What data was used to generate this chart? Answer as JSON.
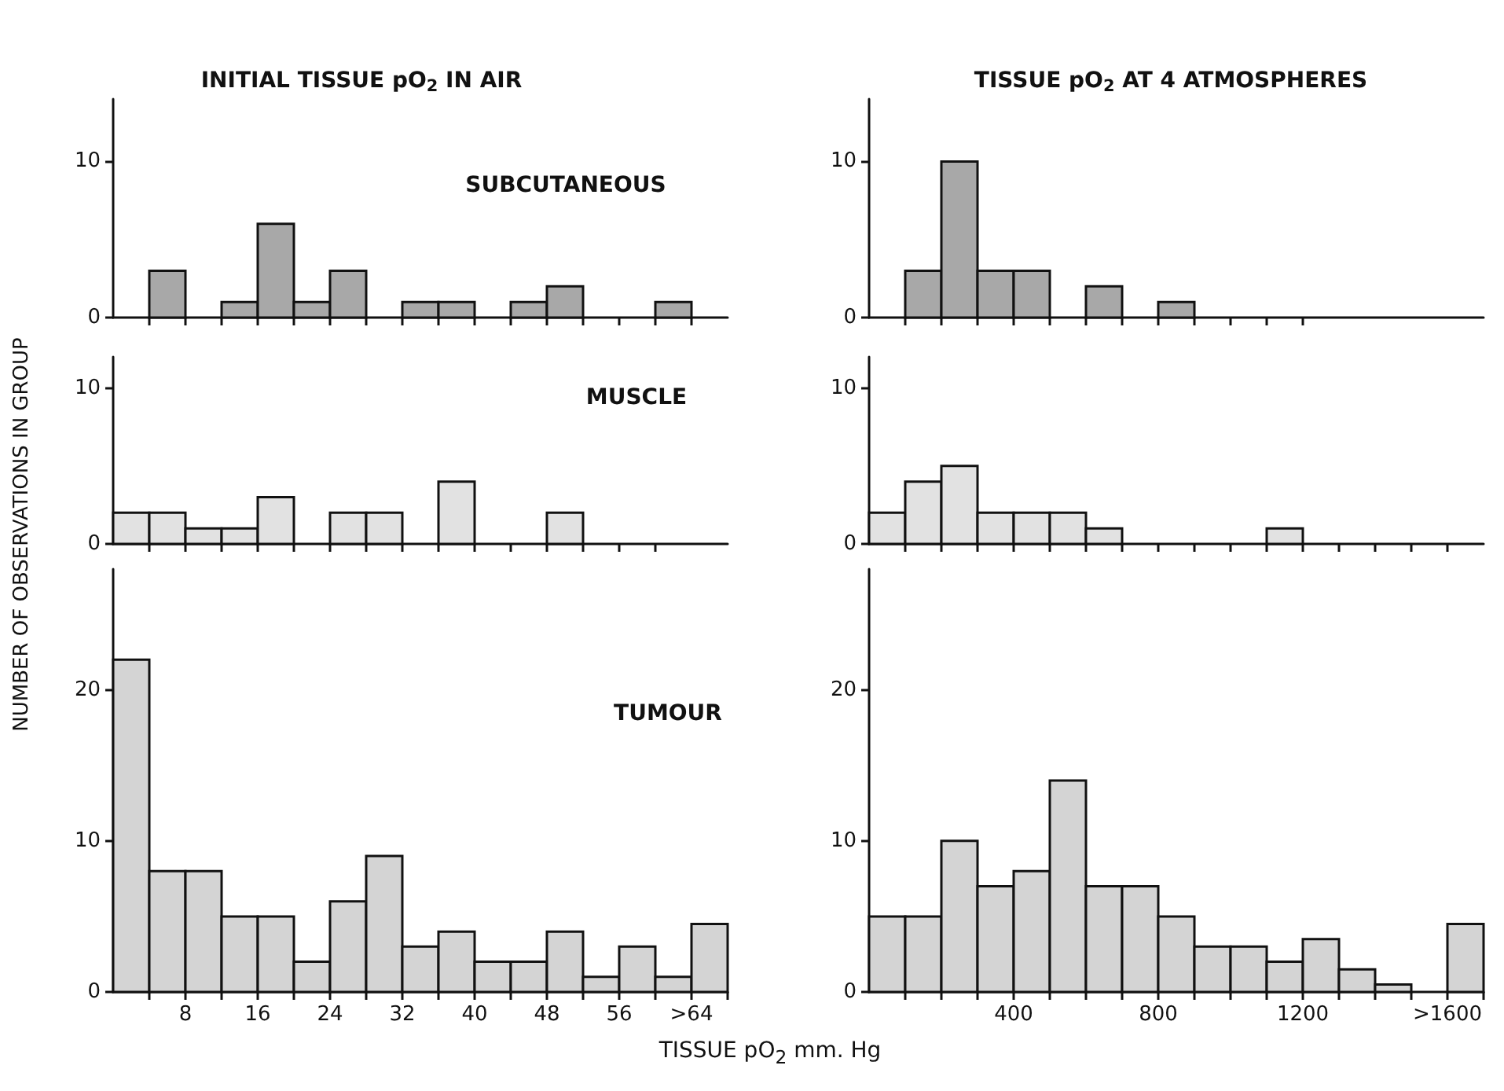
{
  "chart_data": [
    {
      "type": "histogram",
      "title": "INITIAL TISSUE pO$_{2}$ IN AIR",
      "subtitle": "SUBCUTANEOUS",
      "bins": [
        0,
        4,
        8,
        12,
        16,
        20,
        24,
        28,
        32,
        36,
        40,
        44,
        48,
        52,
        56,
        60,
        64,
        68
      ],
      "values": [
        0,
        3,
        0,
        1,
        6,
        1,
        3,
        0,
        1,
        1,
        0,
        1,
        2,
        0,
        0,
        1,
        0
      ],
      "color": "#a8a8a8",
      "xlim": [
        0,
        68
      ],
      "ylim": [
        0,
        14
      ],
      "yticks": [
        0,
        10
      ],
      "xticks": [
        {
          "value": 4,
          "label": null
        },
        {
          "value": 8,
          "label": null
        },
        {
          "value": 12,
          "label": null
        },
        {
          "value": 16,
          "label": null
        },
        {
          "value": 20,
          "label": null
        },
        {
          "value": 24,
          "label": null
        },
        {
          "value": 28,
          "label": null
        },
        {
          "value": 32,
          "label": null
        },
        {
          "value": 36,
          "label": null
        },
        {
          "value": 40,
          "label": null
        },
        {
          "value": 44,
          "label": null
        },
        {
          "value": 48,
          "label": null
        },
        {
          "value": 52,
          "label": null
        },
        {
          "value": 56,
          "label": null
        },
        {
          "value": 60,
          "label": null
        },
        {
          "value": 64,
          "label": null
        }
      ],
      "tick_labels": "y"
    },
    {
      "type": "histogram",
      "title": "TISSUE pO$_{2}$ AT 4 ATMOSPHERES",
      "bins": [
        0,
        100,
        200,
        300,
        400,
        500,
        600,
        700,
        800,
        900,
        1000,
        1100,
        1200,
        1300,
        1400,
        1500,
        1600,
        1700
      ],
      "values": [
        0,
        3,
        10,
        3,
        3,
        0,
        2,
        0,
        1,
        0,
        0,
        0,
        0,
        0,
        0,
        0,
        0
      ],
      "color": "#a8a8a8",
      "xlim": [
        0,
        1700
      ],
      "ylim": [
        0,
        14
      ],
      "yticks": [
        0,
        10
      ],
      "xticks": [
        {
          "value": 100,
          "label": null
        },
        {
          "value": 200,
          "label": null
        },
        {
          "value": 300,
          "label": null
        },
        {
          "value": 400,
          "label": null
        },
        {
          "value": 500,
          "label": null
        },
        {
          "value": 600,
          "label": null
        },
        {
          "value": 700,
          "label": null
        },
        {
          "value": 800,
          "label": null
        },
        {
          "value": 900,
          "label": null
        },
        {
          "value": 1000,
          "label": null
        },
        {
          "value": 1100,
          "label": null
        },
        {
          "value": 1200,
          "label": null
        }
      ],
      "tick_labels": "y"
    },
    {
      "type": "histogram",
      "subtitle": "MUSCLE",
      "ylabel": "NUMBER OF OBSERVATIONS IN GROUP",
      "bins": [
        0,
        4,
        8,
        12,
        16,
        20,
        24,
        28,
        32,
        36,
        40,
        44,
        48,
        52,
        56,
        60,
        64,
        68
      ],
      "values": [
        2,
        2,
        1,
        1,
        3,
        0,
        2,
        2,
        0,
        4,
        0,
        0,
        2,
        0,
        0,
        0,
        0
      ],
      "color": "#e2e2e2",
      "xlim": [
        0,
        68
      ],
      "ylim": [
        0,
        12
      ],
      "yticks": [
        0,
        10
      ],
      "xticks": [
        {
          "value": 4,
          "label": null
        },
        {
          "value": 8,
          "label": null
        },
        {
          "value": 12,
          "label": null
        },
        {
          "value": 16,
          "label": null
        },
        {
          "value": 20,
          "label": null
        },
        {
          "value": 24,
          "label": null
        },
        {
          "value": 28,
          "label": null
        },
        {
          "value": 32,
          "label": null
        },
        {
          "value": 36,
          "label": null
        },
        {
          "value": 40,
          "label": null
        },
        {
          "value": 44,
          "label": null
        },
        {
          "value": 48,
          "label": null
        },
        {
          "value": 52,
          "label": null
        },
        {
          "value": 56,
          "label": null
        },
        {
          "value": 60,
          "label": null
        }
      ],
      "tick_labels": "y"
    },
    {
      "type": "histogram",
      "bins": [
        0,
        100,
        200,
        300,
        400,
        500,
        600,
        700,
        800,
        900,
        1000,
        1100,
        1200,
        1300,
        1400,
        1500,
        1600,
        1700
      ],
      "values": [
        2,
        4,
        5,
        2,
        2,
        2,
        1,
        0,
        0,
        0,
        0,
        1,
        0,
        0,
        0,
        0,
        0
      ],
      "color": "#e2e2e2",
      "xlim": [
        0,
        1700
      ],
      "ylim": [
        0,
        12
      ],
      "yticks": [
        0,
        10
      ],
      "xticks": [
        {
          "value": 100,
          "label": null
        },
        {
          "value": 200,
          "label": null
        },
        {
          "value": 300,
          "label": null
        },
        {
          "value": 400,
          "label": null
        },
        {
          "value": 500,
          "label": null
        },
        {
          "value": 600,
          "label": null
        },
        {
          "value": 700,
          "label": null
        },
        {
          "value": 800,
          "label": null
        },
        {
          "value": 900,
          "label": null
        },
        {
          "value": 1000,
          "label": null
        },
        {
          "value": 1100,
          "label": null
        },
        {
          "value": 1200,
          "label": null
        },
        {
          "value": 1300,
          "label": null
        },
        {
          "value": 1400,
          "label": null
        },
        {
          "value": 1500,
          "label": null
        },
        {
          "value": 1600,
          "label": null
        }
      ],
      "tick_labels": "y"
    },
    {
      "type": "histogram",
      "subtitle": "TUMOUR",
      "xlabel": "TISSUE pO$_{2}$ mm. Hg",
      "bins": [
        0,
        4,
        8,
        12,
        16,
        20,
        24,
        28,
        32,
        36,
        40,
        44,
        48,
        52,
        56,
        60,
        64,
        68
      ],
      "values": [
        22,
        8,
        8,
        5,
        5,
        2,
        6,
        9,
        3,
        4,
        2,
        2,
        4,
        1,
        3,
        1,
        4.5
      ],
      "color": "#d4d4d4",
      "xlim": [
        0,
        68
      ],
      "ylim": [
        0,
        28
      ],
      "yticks": [
        0,
        10,
        20
      ],
      "xticks": [
        {
          "value": 4,
          "label": null
        },
        8,
        {
          "value": 12,
          "label": null
        },
        16,
        {
          "value": 20,
          "label": null
        },
        24,
        {
          "value": 28,
          "label": null
        },
        32,
        {
          "value": 36,
          "label": null
        },
        40,
        {
          "value": 44,
          "label": null
        },
        48,
        {
          "value": 52,
          "label": null
        },
        56,
        {
          "value": 60,
          "label": null
        },
        {
          "value": 64,
          "label": ">64"
        },
        {
          "value": 68,
          "label": null
        }
      ]
    },
    {
      "type": "histogram",
      "bins": [
        0,
        100,
        200,
        300,
        400,
        500,
        600,
        700,
        800,
        900,
        1000,
        1100,
        1200,
        1300,
        1400,
        1500,
        1600,
        1700
      ],
      "values": [
        5,
        5,
        10,
        7,
        8,
        14,
        7,
        7,
        5,
        3,
        3,
        2,
        3.5,
        1.5,
        0.5,
        0,
        4.5
      ],
      "color": "#d4d4d4",
      "xlim": [
        0,
        1700
      ],
      "ylim": [
        0,
        28
      ],
      "yticks": [
        0,
        10,
        20
      ],
      "xticks": [
        {
          "value": 100,
          "label": null
        },
        {
          "value": 200,
          "label": null
        },
        {
          "value": 300,
          "label": null
        },
        400,
        {
          "value": 500,
          "label": null
        },
        {
          "value": 600,
          "label": null
        },
        {
          "value": 700,
          "label": null
        },
        800,
        {
          "value": 900,
          "label": null
        },
        {
          "value": 1000,
          "label": null
        },
        {
          "value": 1100,
          "label": null
        },
        1200,
        {
          "value": 1300,
          "label": null
        },
        {
          "value": 1400,
          "label": null
        },
        {
          "value": 1500,
          "label": null
        },
        {
          "value": 1600,
          "label": ">1600"
        },
        {
          "value": 1700,
          "label": null
        }
      ]
    }
  ]
}
